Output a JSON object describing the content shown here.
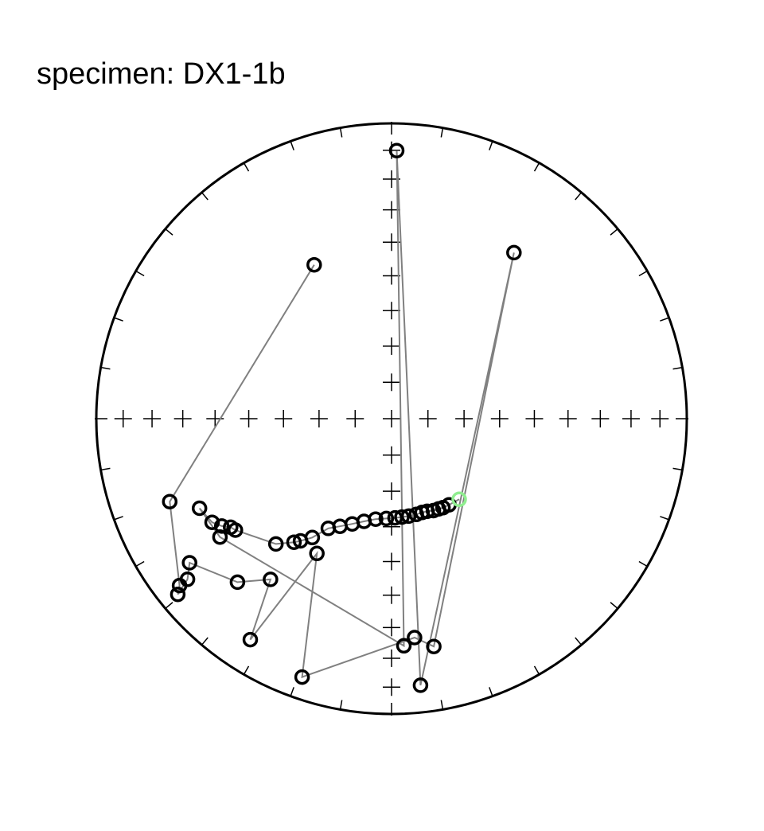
{
  "chart_data": {
    "type": "scatter",
    "projection": "equal-area stereonet",
    "title": "specimen: DX1-1b",
    "colors": {
      "frame": "#000000",
      "path": "#808080",
      "points": "#000000",
      "highlight": "#90ee90"
    },
    "points": [
      {
        "dec": 333.3,
        "inc": 41.3
      },
      {
        "dec": 249.5,
        "inc": -20.9
      },
      {
        "dec": 231.8,
        "inc": -9.5
      },
      {
        "dec": 230.6,
        "inc": -7.0
      },
      {
        "dec": 231.8,
        "inc": -13.1
      },
      {
        "dec": 234.5,
        "inc": -17.1
      },
      {
        "dec": 223.3,
        "inc": -24.9
      },
      {
        "dec": 217.0,
        "inc": -32.4
      },
      {
        "dec": 212.6,
        "inc": -12.2
      },
      {
        "dec": 209.0,
        "inc": -46.7
      },
      {
        "dec": 199.1,
        "inc": -8.2
      },
      {
        "dec": 174.0,
        "inc": -26.4
      },
      {
        "dec": 169.5,
        "inc": -22.6
      },
      {
        "dec": 36.4,
        "inc": 30.8
      },
      {
        "dec": 173.8,
        "inc": -10.1
      },
      {
        "dec": 1.1,
        "inc": 10.1
      },
      {
        "dec": 176.9,
        "inc": -24.0
      },
      {
        "dec": 235.4,
        "inc": -30.1
      },
      {
        "dec": 245.0,
        "inc": -29.0
      },
      {
        "dec": 240.0,
        "inc": -30.5
      },
      {
        "dec": 237.7,
        "inc": -32.5
      },
      {
        "dec": 236.0,
        "inc": -34.6
      },
      {
        "dec": 234.5,
        "inc": -35.3
      },
      {
        "dec": 222.7,
        "inc": -41.8
      },
      {
        "dec": 218.3,
        "inc": -45.7
      },
      {
        "dec": 216.7,
        "inc": -47.2
      },
      {
        "dec": 213.7,
        "inc": -50.0
      },
      {
        "dec": 210.0,
        "inc": -54.7
      },
      {
        "dec": 205.6,
        "inc": -56.8
      },
      {
        "dec": 200.5,
        "inc": -58.8
      },
      {
        "dec": 195.0,
        "inc": -60.5
      },
      {
        "dec": 189.0,
        "inc": -61.8
      },
      {
        "dec": 183.0,
        "inc": -62.3
      },
      {
        "dec": 178.0,
        "inc": -62.5
      },
      {
        "dec": 174.0,
        "inc": -62.6
      },
      {
        "dec": 170.0,
        "inc": -62.6
      },
      {
        "dec": 165.5,
        "inc": -62.6
      },
      {
        "dec": 162.0,
        "inc": -62.7
      },
      {
        "dec": 159.0,
        "inc": -62.5
      },
      {
        "dec": 155.5,
        "inc": -62.0
      },
      {
        "dec": 152.5,
        "inc": -61.8
      },
      {
        "dec": 150.0,
        "inc": -61.5
      },
      {
        "dec": 146.3,
        "inc": -61.3
      },
      {
        "dec": 140.0,
        "inc": -60.8
      }
    ],
    "highlight_index": 43,
    "ticks": {
      "rim_deg": 10,
      "axis_inc_deg": 10
    }
  }
}
